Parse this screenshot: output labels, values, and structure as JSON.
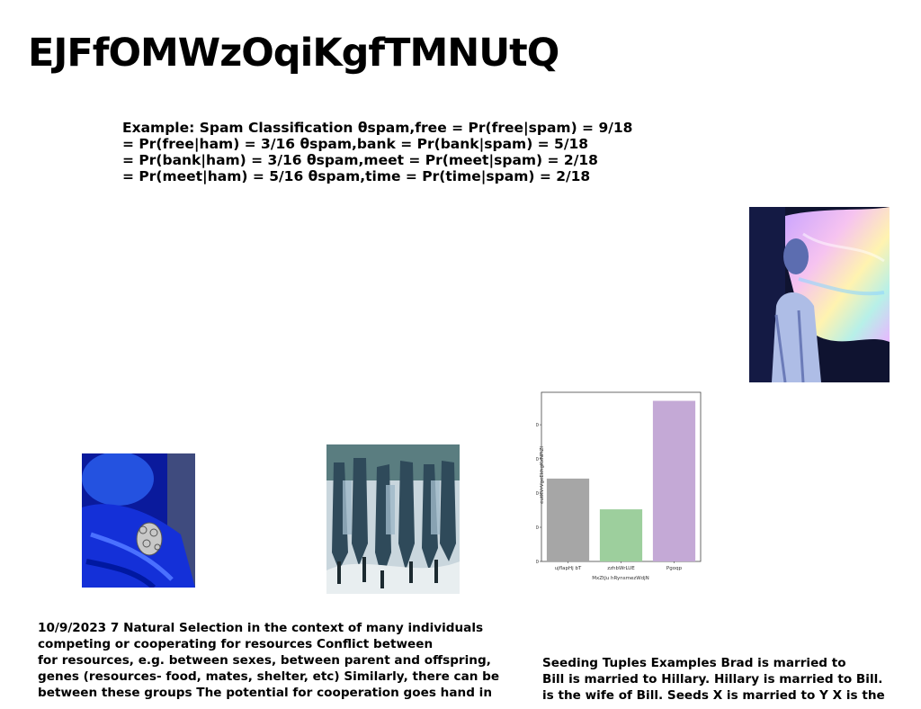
{
  "title": "EJFfOMWzOqiKgfTMNUtQ",
  "example_lines": [
    "Example: Spam Classification θspam,free = Pr(free|spam) = 9/18",
    "= Pr(free|ham) = 3/16 θspam,bank = Pr(bank|spam) = 5/18",
    "= Pr(bank|ham) = 3/16 θspam,meet = Pr(meet|spam) = 2/18",
    "= Pr(meet|ham) = 5/16 θspam,time = Pr(time|spam) = 2/18"
  ],
  "left_paragraph_lines": [
    "10/9/2023 7 Natural Selection in the context of many individuals",
    "competing or cooperating for resources Conflict between",
    "for resources, e.g. between sexes, between parent and offspring,",
    "genes (resources- food, mates, shelter, etc) Similarly, there can be",
    "between these groups The potential for cooperation goes hand in"
  ],
  "right_paragraph_lines": [
    "Seeding Tuples Examples Brad is married to",
    "Bill is married to Hillary. Hillary is married to Bill.",
    "is the wife of Bill. Seeds X is married to Y X is the"
  ],
  "images": {
    "top_right": "woman-with-rainbow-fabric-image",
    "blue": "blue-hooded-figure-image",
    "crowd": "painted-crowd-image"
  },
  "chart_data": {
    "type": "bar",
    "categories": [
      "ujflapHj bT",
      "zzhbWrLUE",
      "Pgoqp"
    ],
    "values": [
      485,
      305,
      940
    ],
    "colors": [
      "#a6a6a6",
      "#9dcf9d",
      "#c4a9d6"
    ],
    "xlabel": "MxZtJu hRynsmezWdjN",
    "ylabel": "eutKVrVgeEkhgKxNPiZl",
    "yticks": [
      0,
      200,
      400,
      600,
      800
    ],
    "ylim": [
      0,
      990
    ],
    "grid": false
  }
}
